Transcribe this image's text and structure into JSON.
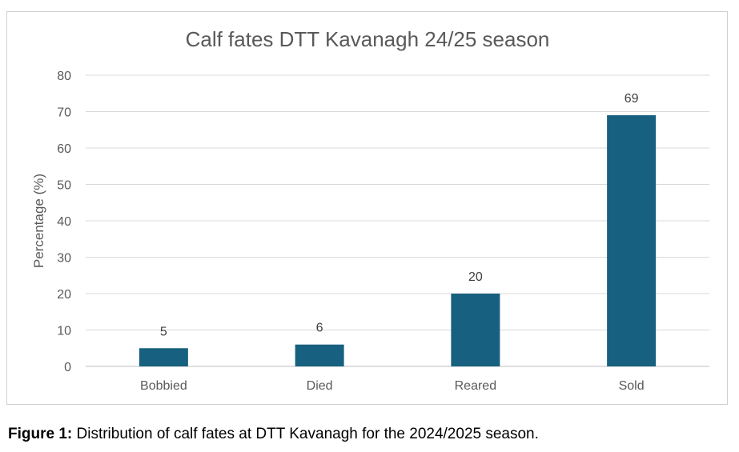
{
  "chart_data": {
    "type": "bar",
    "title": "Calf fates DTT Kavanagh 24/25 season",
    "xlabel": "",
    "ylabel": "Percentage (%)",
    "categories": [
      "Bobbied",
      "Died",
      "Reared",
      "Sold"
    ],
    "values": [
      5,
      6,
      20,
      69
    ],
    "data_labels": [
      "5",
      "6",
      "20",
      "69"
    ],
    "ylim": [
      0,
      80
    ],
    "yticks": [
      0,
      10,
      20,
      30,
      40,
      50,
      60,
      70,
      80
    ],
    "grid": true,
    "legend": "none",
    "bar_color": "#17607f"
  },
  "caption": {
    "label": "Figure 1:",
    "text": " Distribution of calf fates at DTT Kavanagh for the 2024/2025 season."
  }
}
